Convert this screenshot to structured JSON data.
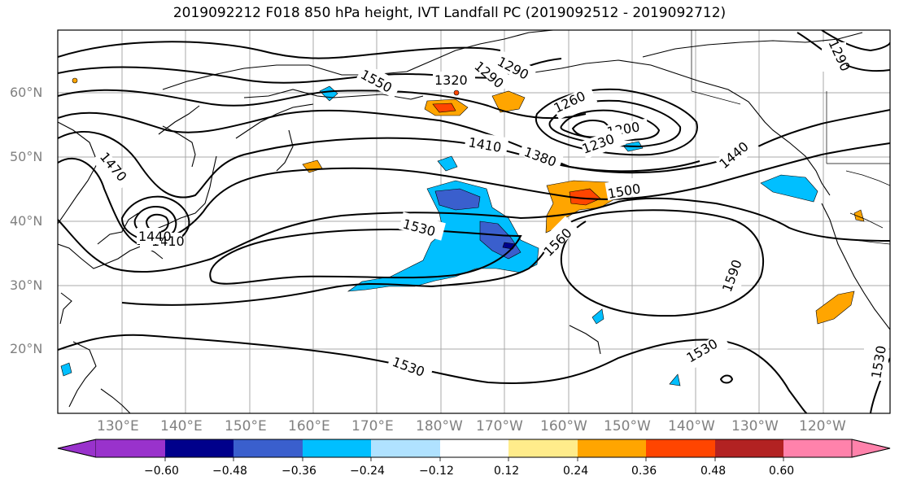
{
  "title": "2019092212 F018 850 hPa height, IVT Landfall PC (2019092512 - 2019092712)",
  "lat_labels": [
    "60°N",
    "50°N",
    "40°N",
    "30°N",
    "20°N"
  ],
  "lon_labels": [
    "130°E",
    "140°E",
    "150°E",
    "160°E",
    "170°E",
    "180°W",
    "170°W",
    "160°W",
    "150°W",
    "140°W",
    "130°W",
    "120°W"
  ],
  "contour_labels": [
    "1290",
    "1550",
    "1320",
    "1290",
    "1260",
    "1200",
    "1230",
    "1410",
    "1380",
    "1440",
    "1470",
    "1410",
    "1440",
    "1500",
    "1530",
    "1560",
    "1590",
    "1530",
    "1530",
    "1530",
    "1290"
  ],
  "colorbar": {
    "ticks": [
      "−0.60",
      "−0.48",
      "−0.36",
      "−0.24",
      "−0.12",
      "0.12",
      "0.24",
      "0.36",
      "0.48",
      "0.60"
    ],
    "colors": [
      "#9932CC",
      "#00008B",
      "#3A5FCD",
      "#00BFFF",
      "#B0E2FF",
      "#FFFFFF",
      "#FFEC8B",
      "#FFA500",
      "#FF4500",
      "#B22222",
      "#FF82AB"
    ]
  }
}
